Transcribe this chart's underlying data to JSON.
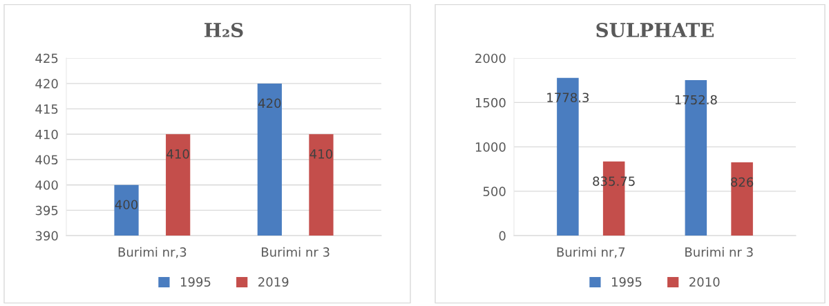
{
  "chart_data": [
    {
      "type": "bar",
      "title": "H₂S",
      "categories": [
        "Burimi nr,3",
        "Burimi nr 3"
      ],
      "series": [
        {
          "name": "1995",
          "color": "#4a7dc0",
          "values": [
            400,
            420
          ]
        },
        {
          "name": "2019",
          "color": "#c44e4b",
          "values": [
            410,
            410
          ]
        }
      ],
      "ylim": [
        390,
        425
      ],
      "yticks": [
        390,
        395,
        400,
        405,
        410,
        415,
        420,
        425
      ],
      "grid": "y",
      "legend": "bottom",
      "data_labels": true
    },
    {
      "type": "bar",
      "title": "SULPHATE",
      "categories": [
        "Burimi nr,7",
        "Burimi nr 3"
      ],
      "series": [
        {
          "name": "1995",
          "color": "#4a7dc0",
          "values": [
            1778.3,
            1752.8
          ]
        },
        {
          "name": "2010",
          "color": "#c44e4b",
          "values": [
            835.75,
            826
          ]
        }
      ],
      "ylim": [
        0,
        2000
      ],
      "yticks": [
        0,
        500,
        1000,
        1500,
        2000
      ],
      "grid": "y",
      "legend": "bottom",
      "data_labels": true
    }
  ]
}
